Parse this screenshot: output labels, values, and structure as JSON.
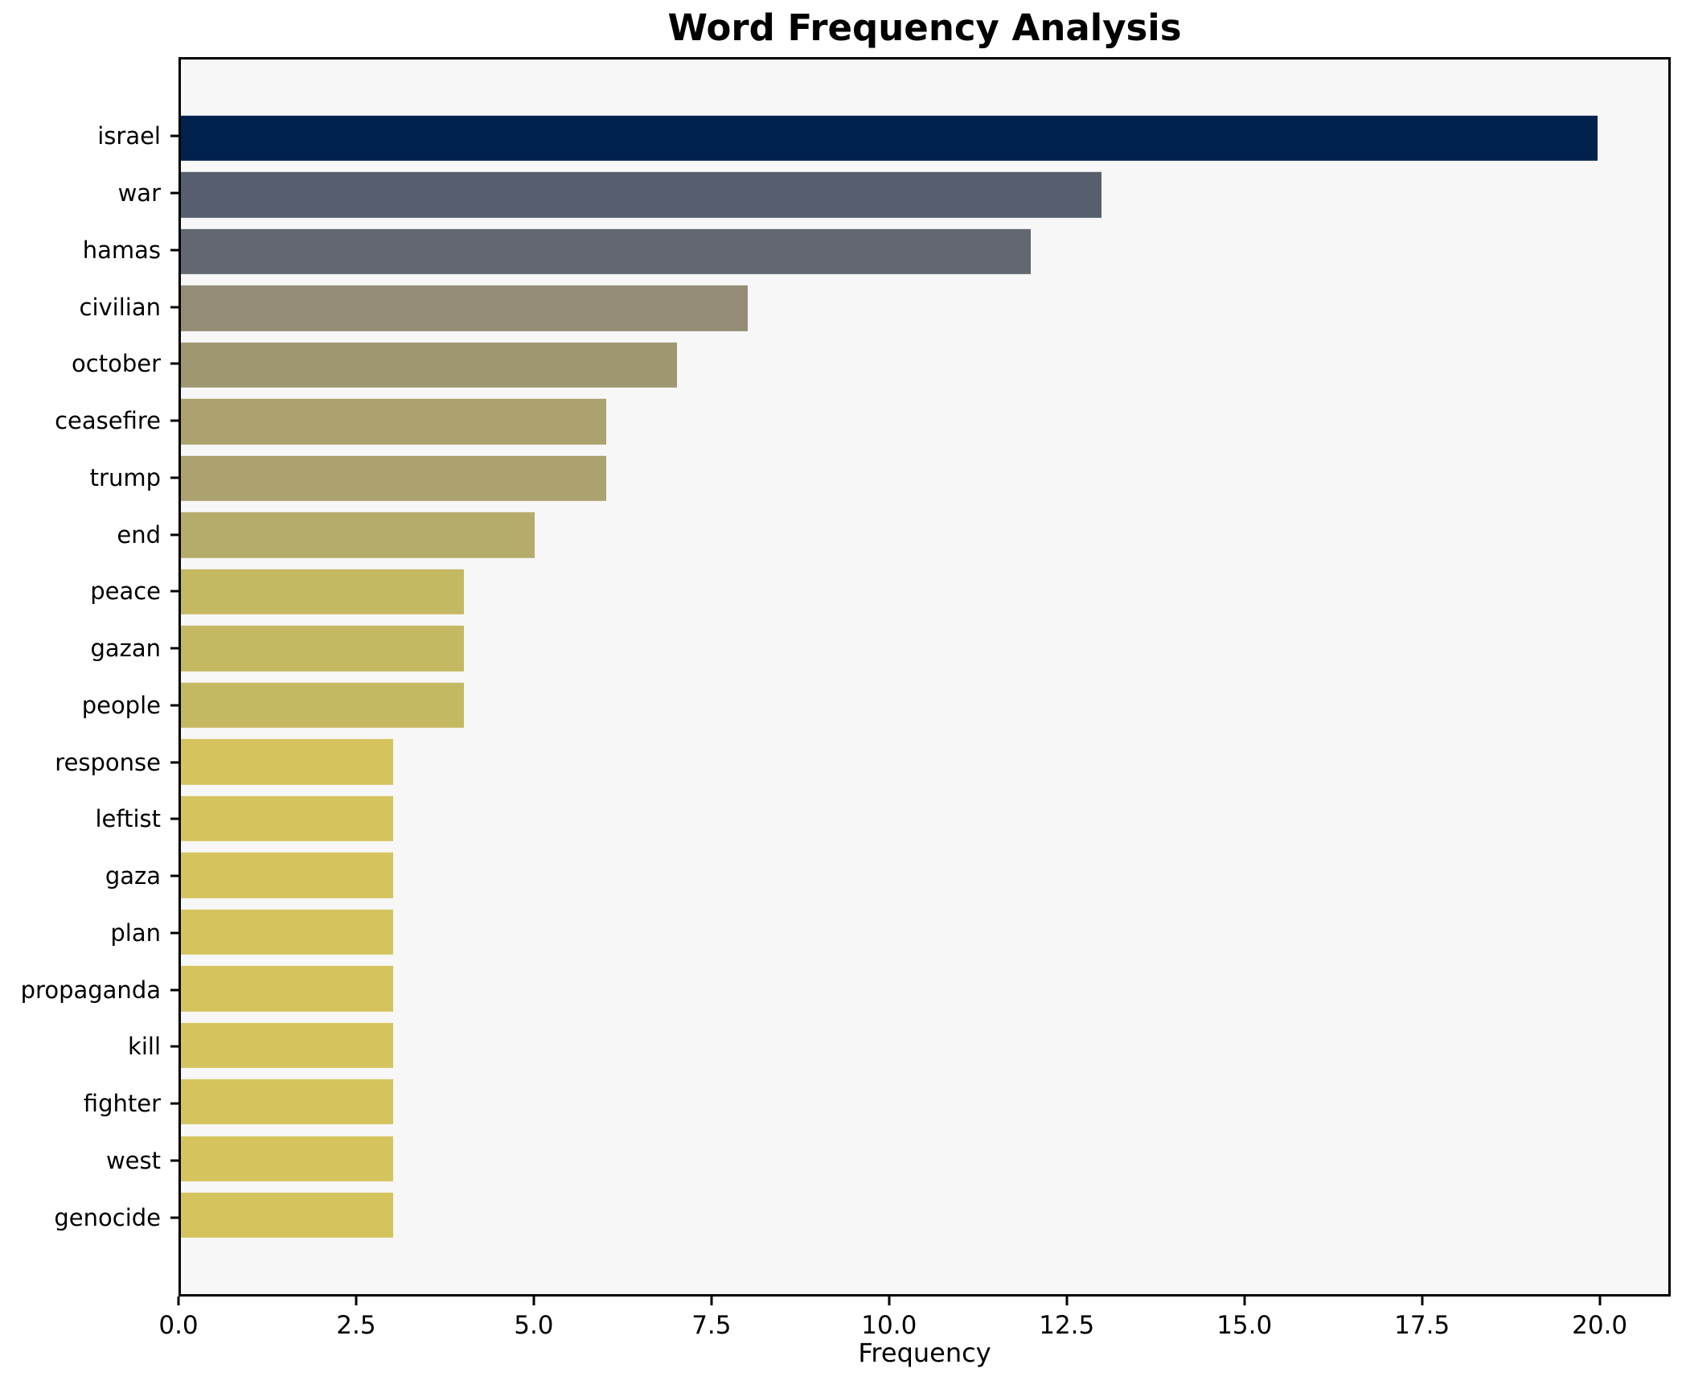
{
  "figure": {
    "title": "Word Frequency Analysis",
    "xlabel": "Frequency"
  },
  "style": {
    "figure_bg": "#ffffff",
    "plot_bg": "#f7f7f8",
    "spine_color": "#000000",
    "text_color": "#000000"
  },
  "chart_data": {
    "type": "bar",
    "orientation": "horizontal",
    "title": "Word Frequency Analysis",
    "xlabel": "Frequency",
    "ylabel": "",
    "grid": false,
    "legend": false,
    "xlim": [
      0,
      21
    ],
    "x_ticks": [
      {
        "value": 0,
        "label": "0.0"
      },
      {
        "value": 2.5,
        "label": "2.5"
      },
      {
        "value": 5,
        "label": "5.0"
      },
      {
        "value": 7.5,
        "label": "7.5"
      },
      {
        "value": 10,
        "label": "10.0"
      },
      {
        "value": 12.5,
        "label": "12.5"
      },
      {
        "value": 15,
        "label": "15.0"
      },
      {
        "value": 17.5,
        "label": "17.5"
      },
      {
        "value": 20,
        "label": "20.0"
      }
    ],
    "categories": [
      "israel",
      "war",
      "hamas",
      "civilian",
      "october",
      "ceasefire",
      "trump",
      "end",
      "peace",
      "gazan",
      "people",
      "response",
      "leftist",
      "gaza",
      "plan",
      "propaganda",
      "kill",
      "fighter",
      "west",
      "genocide"
    ],
    "values": [
      20,
      13,
      12,
      8,
      7,
      6,
      6,
      5,
      4,
      4,
      4,
      3,
      3,
      3,
      3,
      3,
      3,
      3,
      3,
      3
    ],
    "bar_colors": [
      "#00224d",
      "#575e6e",
      "#63676f",
      "#948c74",
      "#9f9772",
      "#aba26f",
      "#aba26f",
      "#b5ab6b",
      "#c5b862",
      "#c5b862",
      "#c5b862",
      "#d5c45e",
      "#d5c45e",
      "#d5c45e",
      "#d5c45e",
      "#d5c45e",
      "#d5c45e",
      "#d5c45e",
      "#d5c45e",
      "#d5c45e"
    ]
  }
}
